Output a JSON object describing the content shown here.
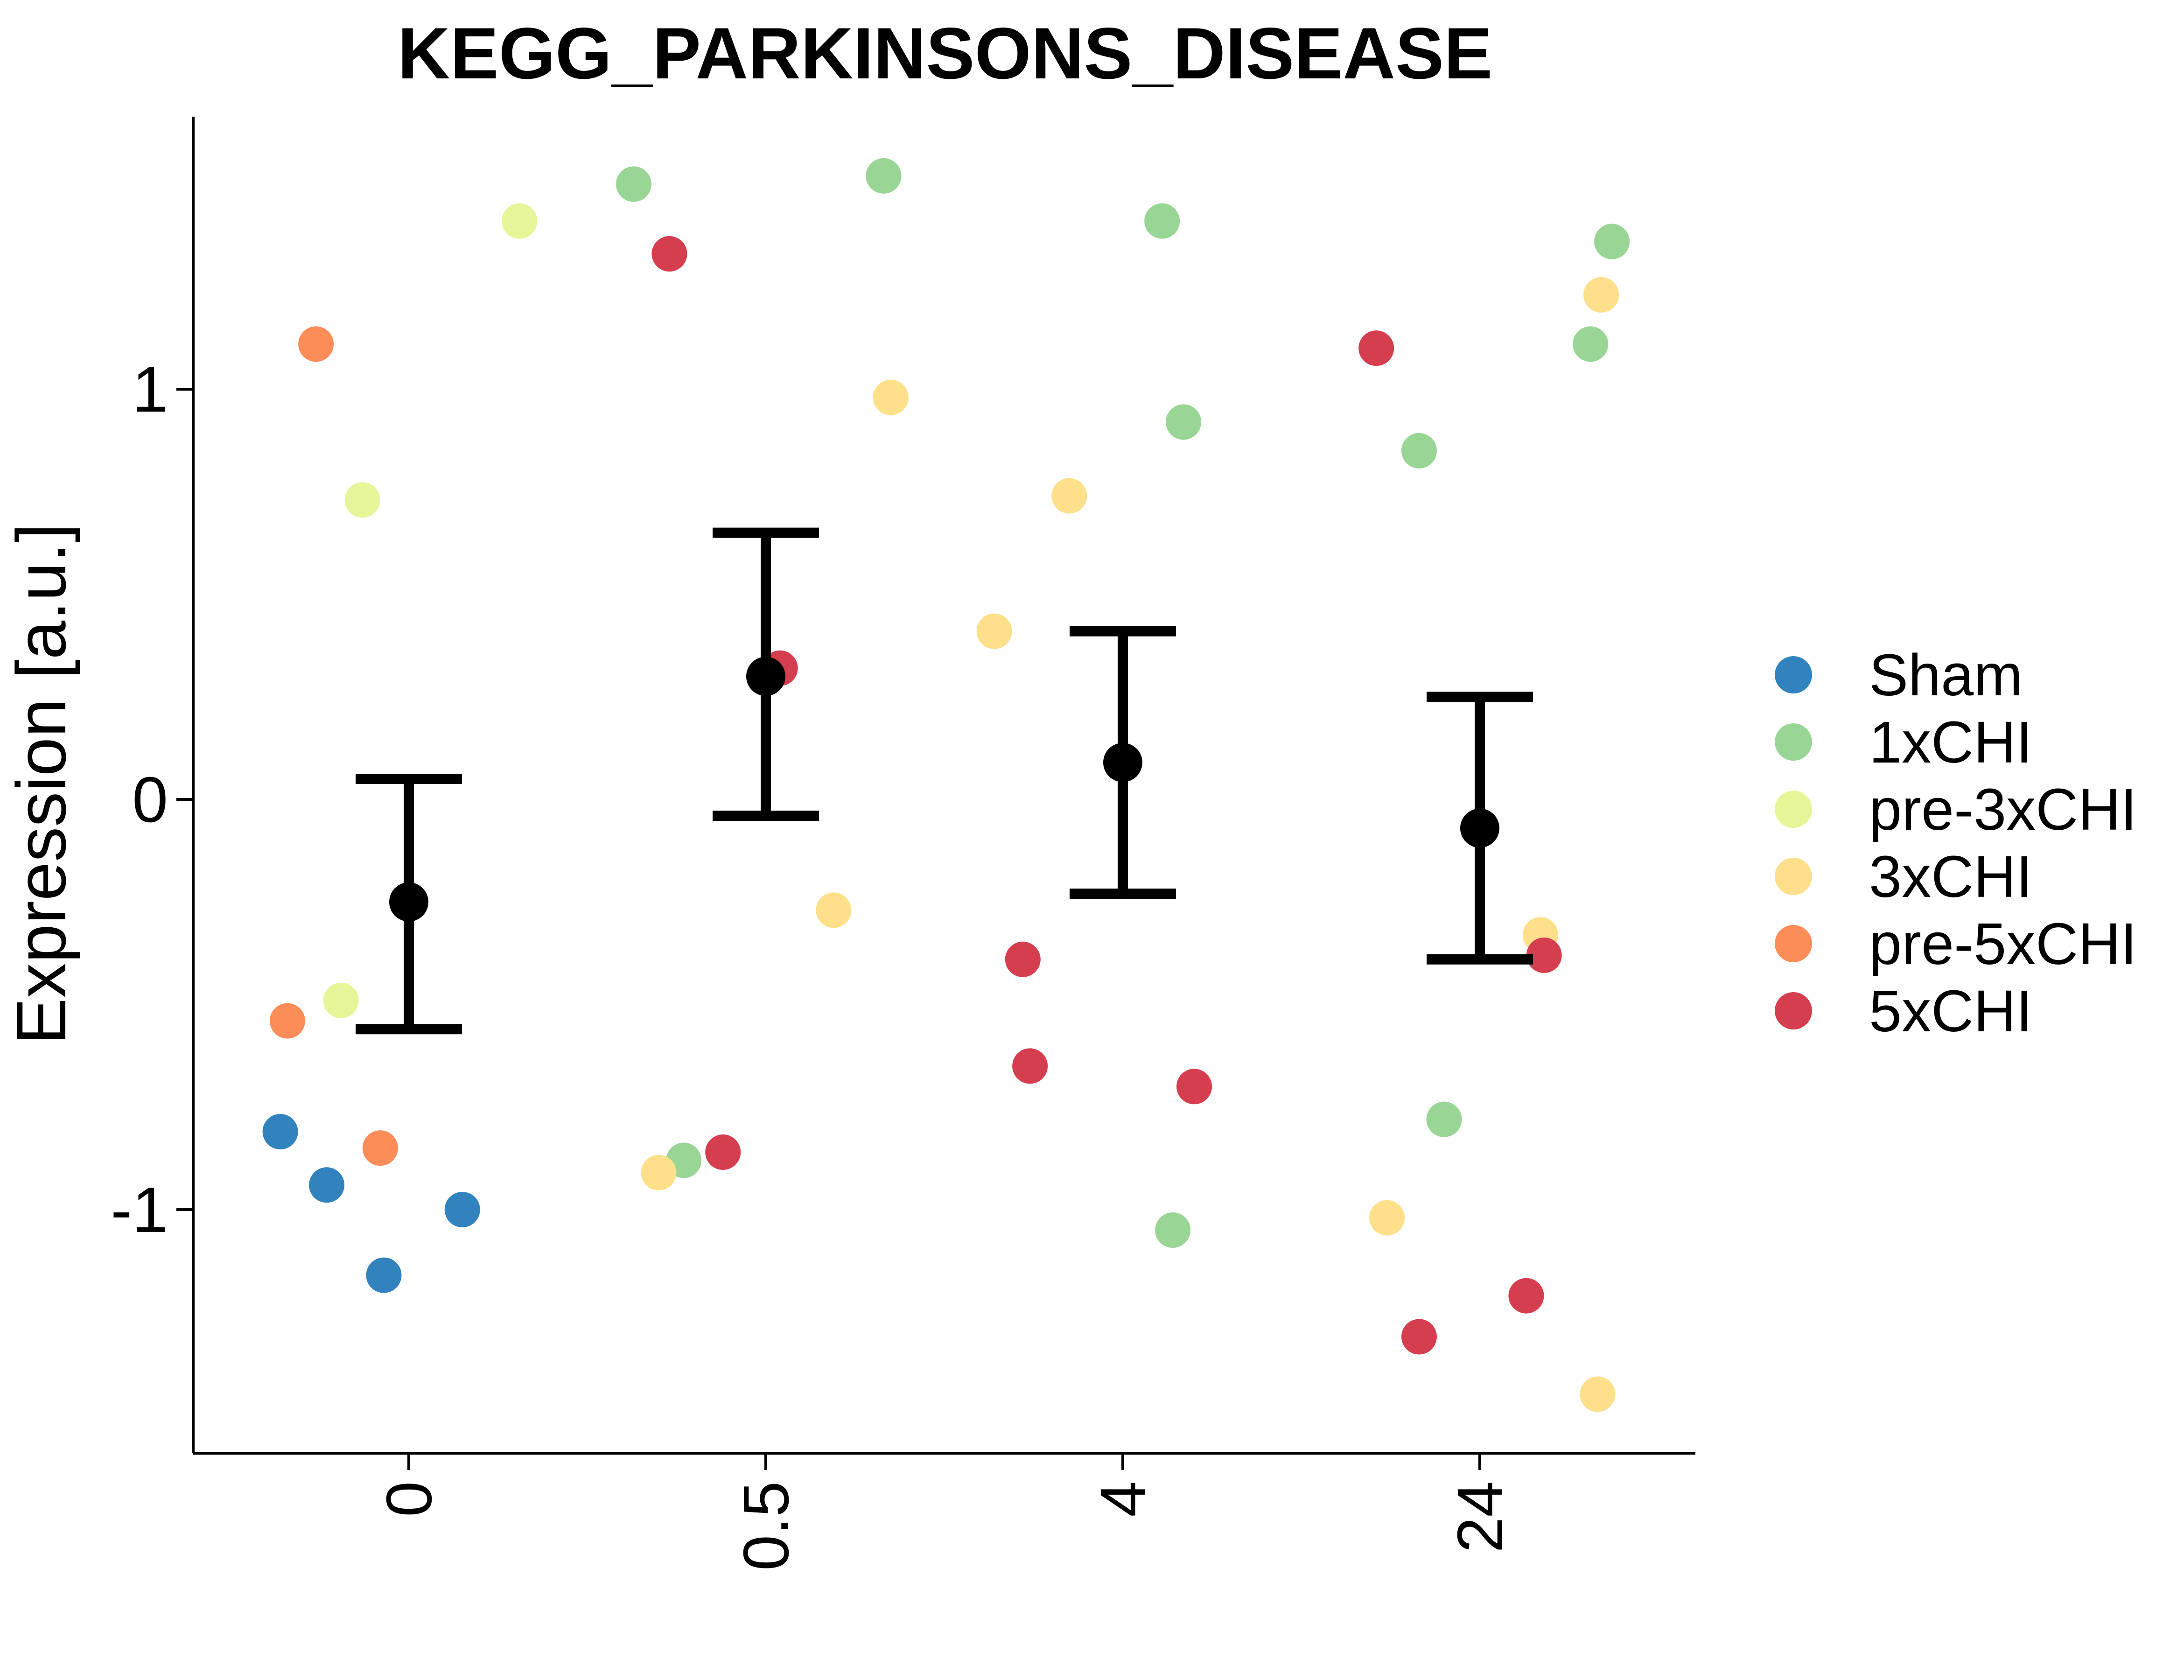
{
  "chart_data": {
    "type": "scatter",
    "title": "KEGG_PARKINSONS_DISEASE",
    "xlabel": "",
    "ylabel": "Expression [a.u.]",
    "categories": [
      "0",
      "0.5",
      "4",
      "24"
    ],
    "ylim": [
      -1.6,
      1.65
    ],
    "yticks": [
      -1,
      0,
      1
    ],
    "ytick_labels": [
      "-1",
      "0",
      "1"
    ],
    "grid": false,
    "legend": {
      "placement": "right",
      "entries": [
        {
          "name": "Sham",
          "color": "#3182bd"
        },
        {
          "name": "1xCHI",
          "color": "#99d594"
        },
        {
          "name": "pre-3xCHI",
          "color": "#e6f598"
        },
        {
          "name": "3xCHI",
          "color": "#fee08b"
        },
        {
          "name": "pre-5xCHI",
          "color": "#fc8d59"
        },
        {
          "name": "5xCHI",
          "color": "#d53e4f"
        }
      ]
    },
    "summary": [
      {
        "x": "0",
        "mean": -0.25,
        "lower": -0.56,
        "upper": 0.05
      },
      {
        "x": "0.5",
        "mean": 0.3,
        "lower": -0.04,
        "upper": 0.65
      },
      {
        "x": "4",
        "mean": 0.09,
        "lower": -0.23,
        "upper": 0.41
      },
      {
        "x": "24",
        "mean": -0.07,
        "lower": -0.39,
        "upper": 0.25
      }
    ],
    "points": [
      {
        "group": "0",
        "offset": -0.36,
        "y": -0.81,
        "series": "Sham"
      },
      {
        "group": "0",
        "offset": -0.23,
        "y": -0.94,
        "series": "Sham"
      },
      {
        "group": "0",
        "offset": -0.07,
        "y": -1.16,
        "series": "Sham"
      },
      {
        "group": "0",
        "offset": 0.15,
        "y": -1.0,
        "series": "Sham"
      },
      {
        "group": "0",
        "offset": -0.26,
        "y": 1.11,
        "series": "pre-5xCHI"
      },
      {
        "group": "0",
        "offset": -0.34,
        "y": -0.54,
        "series": "pre-5xCHI"
      },
      {
        "group": "0",
        "offset": -0.08,
        "y": -0.85,
        "series": "pre-5xCHI"
      },
      {
        "group": "0",
        "offset": -0.13,
        "y": 0.73,
        "series": "pre-3xCHI"
      },
      {
        "group": "0",
        "offset": -0.19,
        "y": -0.49,
        "series": "pre-3xCHI"
      },
      {
        "group": "0",
        "offset": 0.31,
        "y": 1.41,
        "series": "pre-3xCHI"
      },
      {
        "group": "0.5",
        "offset": -0.37,
        "y": 1.5,
        "series": "1xCHI"
      },
      {
        "group": "0.5",
        "offset": 0.33,
        "y": 1.52,
        "series": "1xCHI"
      },
      {
        "group": "0.5",
        "offset": -0.23,
        "y": -0.88,
        "series": "1xCHI"
      },
      {
        "group": "0.5",
        "offset": -0.27,
        "y": 1.33,
        "series": "5xCHI"
      },
      {
        "group": "0.5",
        "offset": 0.04,
        "y": 0.32,
        "series": "5xCHI"
      },
      {
        "group": "0.5",
        "offset": -0.12,
        "y": -0.86,
        "series": "5xCHI"
      },
      {
        "group": "0.5",
        "offset": 0.35,
        "y": 0.98,
        "series": "3xCHI"
      },
      {
        "group": "0.5",
        "offset": 0.19,
        "y": -0.27,
        "series": "3xCHI"
      },
      {
        "group": "0.5",
        "offset": -0.3,
        "y": -0.91,
        "series": "3xCHI"
      },
      {
        "group": "4",
        "offset": 0.11,
        "y": 1.41,
        "series": "1xCHI"
      },
      {
        "group": "4",
        "offset": 0.17,
        "y": 0.92,
        "series": "1xCHI"
      },
      {
        "group": "4",
        "offset": 0.14,
        "y": -1.05,
        "series": "1xCHI"
      },
      {
        "group": "4",
        "offset": -0.15,
        "y": 0.74,
        "series": "3xCHI"
      },
      {
        "group": "4",
        "offset": -0.36,
        "y": 0.41,
        "series": "3xCHI"
      },
      {
        "group": "4",
        "offset": -0.28,
        "y": -0.39,
        "series": "5xCHI"
      },
      {
        "group": "4",
        "offset": -0.26,
        "y": -0.65,
        "series": "5xCHI"
      },
      {
        "group": "4",
        "offset": 0.2,
        "y": -0.7,
        "series": "5xCHI"
      },
      {
        "group": "24",
        "offset": 0.37,
        "y": 1.36,
        "series": "1xCHI"
      },
      {
        "group": "24",
        "offset": 0.31,
        "y": 1.11,
        "series": "1xCHI"
      },
      {
        "group": "24",
        "offset": -0.17,
        "y": 0.85,
        "series": "1xCHI"
      },
      {
        "group": "24",
        "offset": -0.1,
        "y": -0.78,
        "series": "1xCHI"
      },
      {
        "group": "24",
        "offset": 0.34,
        "y": 1.23,
        "series": "3xCHI"
      },
      {
        "group": "24",
        "offset": 0.17,
        "y": -0.33,
        "series": "3xCHI"
      },
      {
        "group": "24",
        "offset": -0.26,
        "y": -1.02,
        "series": "3xCHI"
      },
      {
        "group": "24",
        "offset": 0.33,
        "y": -1.45,
        "series": "3xCHI"
      },
      {
        "group": "24",
        "offset": -0.29,
        "y": 1.1,
        "series": "5xCHI"
      },
      {
        "group": "24",
        "offset": 0.18,
        "y": -0.38,
        "series": "5xCHI"
      },
      {
        "group": "24",
        "offset": -0.17,
        "y": -1.31,
        "series": "5xCHI"
      },
      {
        "group": "24",
        "offset": 0.13,
        "y": -1.21,
        "series": "5xCHI"
      }
    ]
  }
}
